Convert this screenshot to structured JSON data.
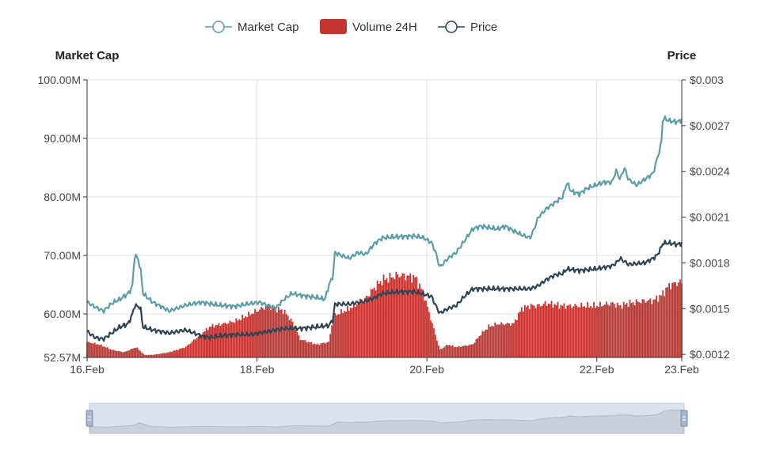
{
  "chart_data": {
    "type": "line",
    "legend": {
      "position": "top-center",
      "items": [
        {
          "name": "Market Cap",
          "color": "#5b9ea6",
          "symbol": "line-circle"
        },
        {
          "name": "Volume 24H",
          "color": "#c23531",
          "symbol": "rect"
        },
        {
          "name": "Price",
          "color": "#2f4554",
          "symbol": "line-circle"
        }
      ]
    },
    "x_axis": {
      "ticks": [
        "16.Feb",
        "18.Feb",
        "20.Feb",
        "22.Feb",
        "23.Feb"
      ],
      "tick_positions_days": [
        0,
        2,
        4,
        6,
        7
      ],
      "range_days": [
        0,
        7
      ]
    },
    "y_left": {
      "title": "Market Cap",
      "ticks": [
        "100.00M",
        "90.00M",
        "80.00M",
        "70.00M",
        "60.00M",
        "52.57M"
      ],
      "tick_values": [
        100,
        90,
        80,
        70,
        60,
        52.57
      ],
      "unit": "M",
      "range": [
        52.57,
        100
      ]
    },
    "y_right": {
      "title": "Price",
      "ticks": [
        "$0.003",
        "$0.0027",
        "$0.0024",
        "$0.0021",
        "$0.0018",
        "$0.0015",
        "$0.0012"
      ],
      "tick_values": [
        0.003,
        0.0027,
        0.0024,
        0.0021,
        0.0018,
        0.0015,
        0.0012
      ],
      "range": [
        0.00118,
        0.003
      ]
    },
    "grid": true,
    "series": [
      {
        "name": "Market Cap",
        "axis": "left",
        "color": "#5b9ea6",
        "points": [
          [
            0.0,
            62.0
          ],
          [
            0.1,
            61.2
          ],
          [
            0.2,
            60.5
          ],
          [
            0.3,
            61.8
          ],
          [
            0.4,
            62.5
          ],
          [
            0.5,
            63.5
          ],
          [
            0.55,
            64.5
          ],
          [
            0.58,
            70.0
          ],
          [
            0.62,
            69.5
          ],
          [
            0.66,
            67.0
          ],
          [
            0.68,
            63.5
          ],
          [
            0.8,
            62.0
          ],
          [
            0.9,
            61.3
          ],
          [
            1.0,
            60.5
          ],
          [
            1.2,
            61.5
          ],
          [
            1.4,
            62.0
          ],
          [
            1.6,
            61.5
          ],
          [
            1.8,
            61.3
          ],
          [
            2.0,
            61.8
          ],
          [
            2.1,
            62.0
          ],
          [
            2.2,
            61.5
          ],
          [
            2.3,
            61.0
          ],
          [
            2.4,
            62.5
          ],
          [
            2.5,
            63.5
          ],
          [
            2.6,
            63.2
          ],
          [
            2.8,
            62.8
          ],
          [
            2.9,
            62.5
          ],
          [
            2.95,
            65.0
          ],
          [
            3.0,
            66.5
          ],
          [
            3.02,
            70.5
          ],
          [
            3.1,
            70.0
          ],
          [
            3.2,
            69.5
          ],
          [
            3.3,
            70.5
          ],
          [
            3.4,
            70.2
          ],
          [
            3.5,
            72.0
          ],
          [
            3.6,
            73.0
          ],
          [
            3.8,
            73.2
          ],
          [
            4.0,
            73.3
          ],
          [
            4.1,
            73.0
          ],
          [
            4.2,
            72.2
          ],
          [
            4.25,
            70.5
          ],
          [
            4.3,
            68.0
          ],
          [
            4.4,
            69.5
          ],
          [
            4.5,
            70.5
          ],
          [
            4.6,
            72.5
          ],
          [
            4.7,
            74.5
          ],
          [
            4.8,
            75.0
          ],
          [
            5.0,
            74.5
          ],
          [
            5.1,
            75.0
          ],
          [
            5.2,
            74.2
          ],
          [
            5.3,
            73.5
          ],
          [
            5.4,
            73.0
          ],
          [
            5.45,
            74.5
          ],
          [
            5.5,
            76.5
          ],
          [
            5.6,
            78.0
          ],
          [
            5.7,
            79.0
          ],
          [
            5.8,
            80.0
          ],
          [
            5.85,
            82.5
          ],
          [
            5.9,
            81.0
          ],
          [
            6.0,
            80.5
          ],
          [
            6.1,
            81.5
          ],
          [
            6.2,
            82.0
          ],
          [
            6.3,
            82.5
          ],
          [
            6.4,
            82.5
          ],
          [
            6.45,
            84.5
          ],
          [
            6.5,
            83.0
          ],
          [
            6.55,
            85.0
          ],
          [
            6.6,
            83.0
          ],
          [
            6.7,
            82.0
          ],
          [
            6.8,
            83.0
          ],
          [
            6.9,
            84.0
          ],
          [
            6.95,
            86.5
          ],
          [
            7.0,
            89.0
          ],
          [
            7.02,
            93.5
          ],
          [
            7.1,
            93.0
          ],
          [
            7.2,
            92.8
          ],
          [
            7.25,
            93.2
          ]
        ]
      },
      {
        "name": "Price",
        "axis": "right",
        "color": "#2f4554",
        "points": [
          [
            0.0,
            0.00135
          ],
          [
            0.1,
            0.00131
          ],
          [
            0.2,
            0.0013
          ],
          [
            0.3,
            0.00134
          ],
          [
            0.4,
            0.00138
          ],
          [
            0.5,
            0.0014
          ],
          [
            0.55,
            0.00146
          ],
          [
            0.58,
            0.00152
          ],
          [
            0.65,
            0.00151
          ],
          [
            0.68,
            0.00138
          ],
          [
            0.8,
            0.00136
          ],
          [
            1.0,
            0.00134
          ],
          [
            1.2,
            0.00136
          ],
          [
            1.4,
            0.00132
          ],
          [
            1.5,
            0.00131
          ],
          [
            1.6,
            0.00132
          ],
          [
            1.8,
            0.00133
          ],
          [
            2.0,
            0.00133
          ],
          [
            2.2,
            0.00135
          ],
          [
            2.4,
            0.00137
          ],
          [
            2.6,
            0.00137
          ],
          [
            2.8,
            0.00138
          ],
          [
            2.95,
            0.00139
          ],
          [
            3.0,
            0.00143
          ],
          [
            3.02,
            0.00153
          ],
          [
            3.2,
            0.00153
          ],
          [
            3.4,
            0.00155
          ],
          [
            3.5,
            0.00157
          ],
          [
            3.6,
            0.0016
          ],
          [
            3.8,
            0.00161
          ],
          [
            4.0,
            0.00161
          ],
          [
            4.2,
            0.00158
          ],
          [
            4.25,
            0.00152
          ],
          [
            4.3,
            0.00147
          ],
          [
            4.4,
            0.0015
          ],
          [
            4.5,
            0.00152
          ],
          [
            4.6,
            0.00158
          ],
          [
            4.7,
            0.00163
          ],
          [
            4.8,
            0.00163
          ],
          [
            5.0,
            0.00163
          ],
          [
            5.2,
            0.00163
          ],
          [
            5.4,
            0.00163
          ],
          [
            5.5,
            0.00165
          ],
          [
            5.6,
            0.00169
          ],
          [
            5.7,
            0.00172
          ],
          [
            5.8,
            0.00173
          ],
          [
            5.85,
            0.00176
          ],
          [
            6.0,
            0.00175
          ],
          [
            6.2,
            0.00176
          ],
          [
            6.4,
            0.00178
          ],
          [
            6.45,
            0.0018
          ],
          [
            6.5,
            0.00183
          ],
          [
            6.6,
            0.00179
          ],
          [
            6.8,
            0.0018
          ],
          [
            6.9,
            0.00183
          ],
          [
            6.95,
            0.00185
          ],
          [
            7.0,
            0.0019
          ],
          [
            7.02,
            0.00193
          ],
          [
            7.1,
            0.00193
          ],
          [
            7.2,
            0.00192
          ],
          [
            7.25,
            0.00193
          ]
        ]
      },
      {
        "name": "Volume 24H",
        "axis": "none",
        "type": "bar",
        "color": "#c23531",
        "relative_height_points": [
          [
            0.0,
            0.06
          ],
          [
            0.15,
            0.05
          ],
          [
            0.3,
            0.03
          ],
          [
            0.45,
            0.02
          ],
          [
            0.6,
            0.04
          ],
          [
            0.7,
            0.01
          ],
          [
            0.8,
            0.01
          ],
          [
            1.0,
            0.02
          ],
          [
            1.2,
            0.04
          ],
          [
            1.5,
            0.12
          ],
          [
            1.8,
            0.14
          ],
          [
            2.0,
            0.17
          ],
          [
            2.2,
            0.2
          ],
          [
            2.4,
            0.18
          ],
          [
            2.5,
            0.14
          ],
          [
            2.6,
            0.07
          ],
          [
            2.8,
            0.05
          ],
          [
            2.95,
            0.06
          ],
          [
            3.0,
            0.16
          ],
          [
            3.2,
            0.19
          ],
          [
            3.4,
            0.23
          ],
          [
            3.5,
            0.27
          ],
          [
            3.6,
            0.3
          ],
          [
            3.8,
            0.32
          ],
          [
            4.0,
            0.31
          ],
          [
            4.1,
            0.25
          ],
          [
            4.2,
            0.14
          ],
          [
            4.3,
            0.03
          ],
          [
            4.4,
            0.05
          ],
          [
            4.5,
            0.04
          ],
          [
            4.7,
            0.05
          ],
          [
            4.8,
            0.09
          ],
          [
            4.9,
            0.12
          ],
          [
            5.0,
            0.13
          ],
          [
            5.1,
            0.13
          ],
          [
            5.2,
            0.13
          ],
          [
            5.3,
            0.19
          ],
          [
            5.4,
            0.2
          ],
          [
            5.5,
            0.2
          ],
          [
            5.6,
            0.21
          ],
          [
            5.8,
            0.2
          ],
          [
            6.0,
            0.2
          ],
          [
            6.2,
            0.2
          ],
          [
            6.4,
            0.21
          ],
          [
            6.5,
            0.2
          ],
          [
            6.6,
            0.21
          ],
          [
            6.8,
            0.22
          ],
          [
            6.9,
            0.22
          ],
          [
            7.0,
            0.24
          ],
          [
            7.1,
            0.28
          ],
          [
            7.2,
            0.29
          ],
          [
            7.25,
            0.29
          ]
        ]
      }
    ],
    "data_zoom": {
      "start_fraction": 0,
      "end_fraction": 1
    }
  }
}
